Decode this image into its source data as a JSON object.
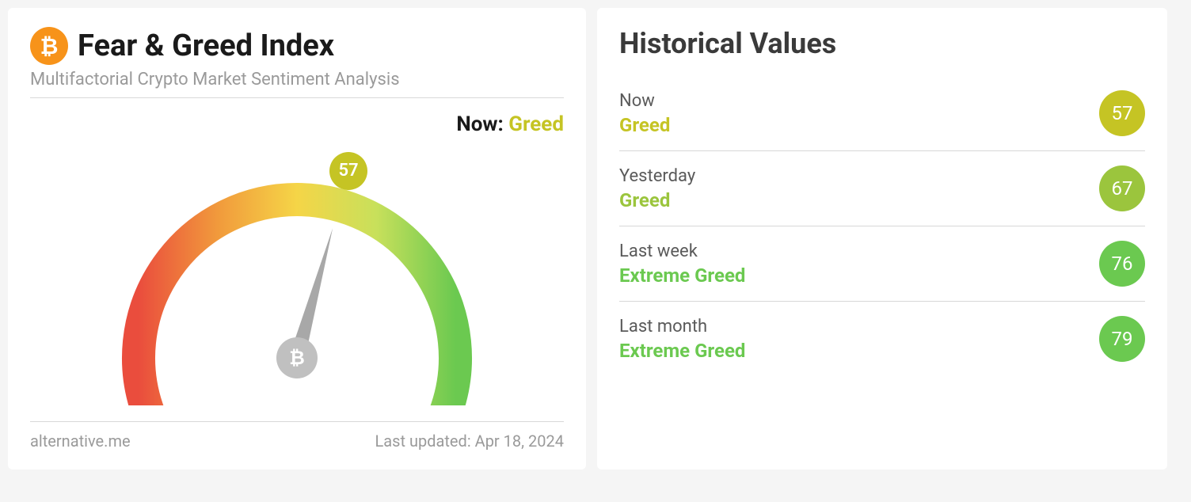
{
  "index": {
    "title": "Fear & Greed Index",
    "subtitle": "Multifactorial Crypto Market Sentiment Analysis",
    "now_prefix": "Now:",
    "now_status": "Greed",
    "now_status_color": "#c5c424",
    "current_value": 57,
    "current_badge_color": "#c5c424",
    "source": "alternative.me",
    "updated_prefix": "Last updated:",
    "updated_date": "Apr 18, 2024",
    "gauge": {
      "min": 0,
      "max": 100,
      "arc_colors_start": "#ea4d3d",
      "arc_colors_mid1": "#f19a3c",
      "arc_colors_mid2": "#f5d547",
      "arc_colors_mid3": "#c8e05b",
      "arc_colors_end": "#6bc950",
      "needle_color": "#a8a8a8",
      "hub_color": "#c0c0c0",
      "stroke_width": 42
    }
  },
  "historical": {
    "title": "Historical Values",
    "items": [
      {
        "period": "Now",
        "status": "Greed",
        "status_color": "#c5c424",
        "value": 57,
        "badge_color": "#c5c424"
      },
      {
        "period": "Yesterday",
        "status": "Greed",
        "status_color": "#9bc53d",
        "value": 67,
        "badge_color": "#9bc53d"
      },
      {
        "period": "Last week",
        "status": "Extreme Greed",
        "status_color": "#6bc950",
        "value": 76,
        "badge_color": "#6bc950"
      },
      {
        "period": "Last month",
        "status": "Extreme Greed",
        "status_color": "#6bc950",
        "value": 79,
        "badge_color": "#6bc950"
      }
    ]
  }
}
